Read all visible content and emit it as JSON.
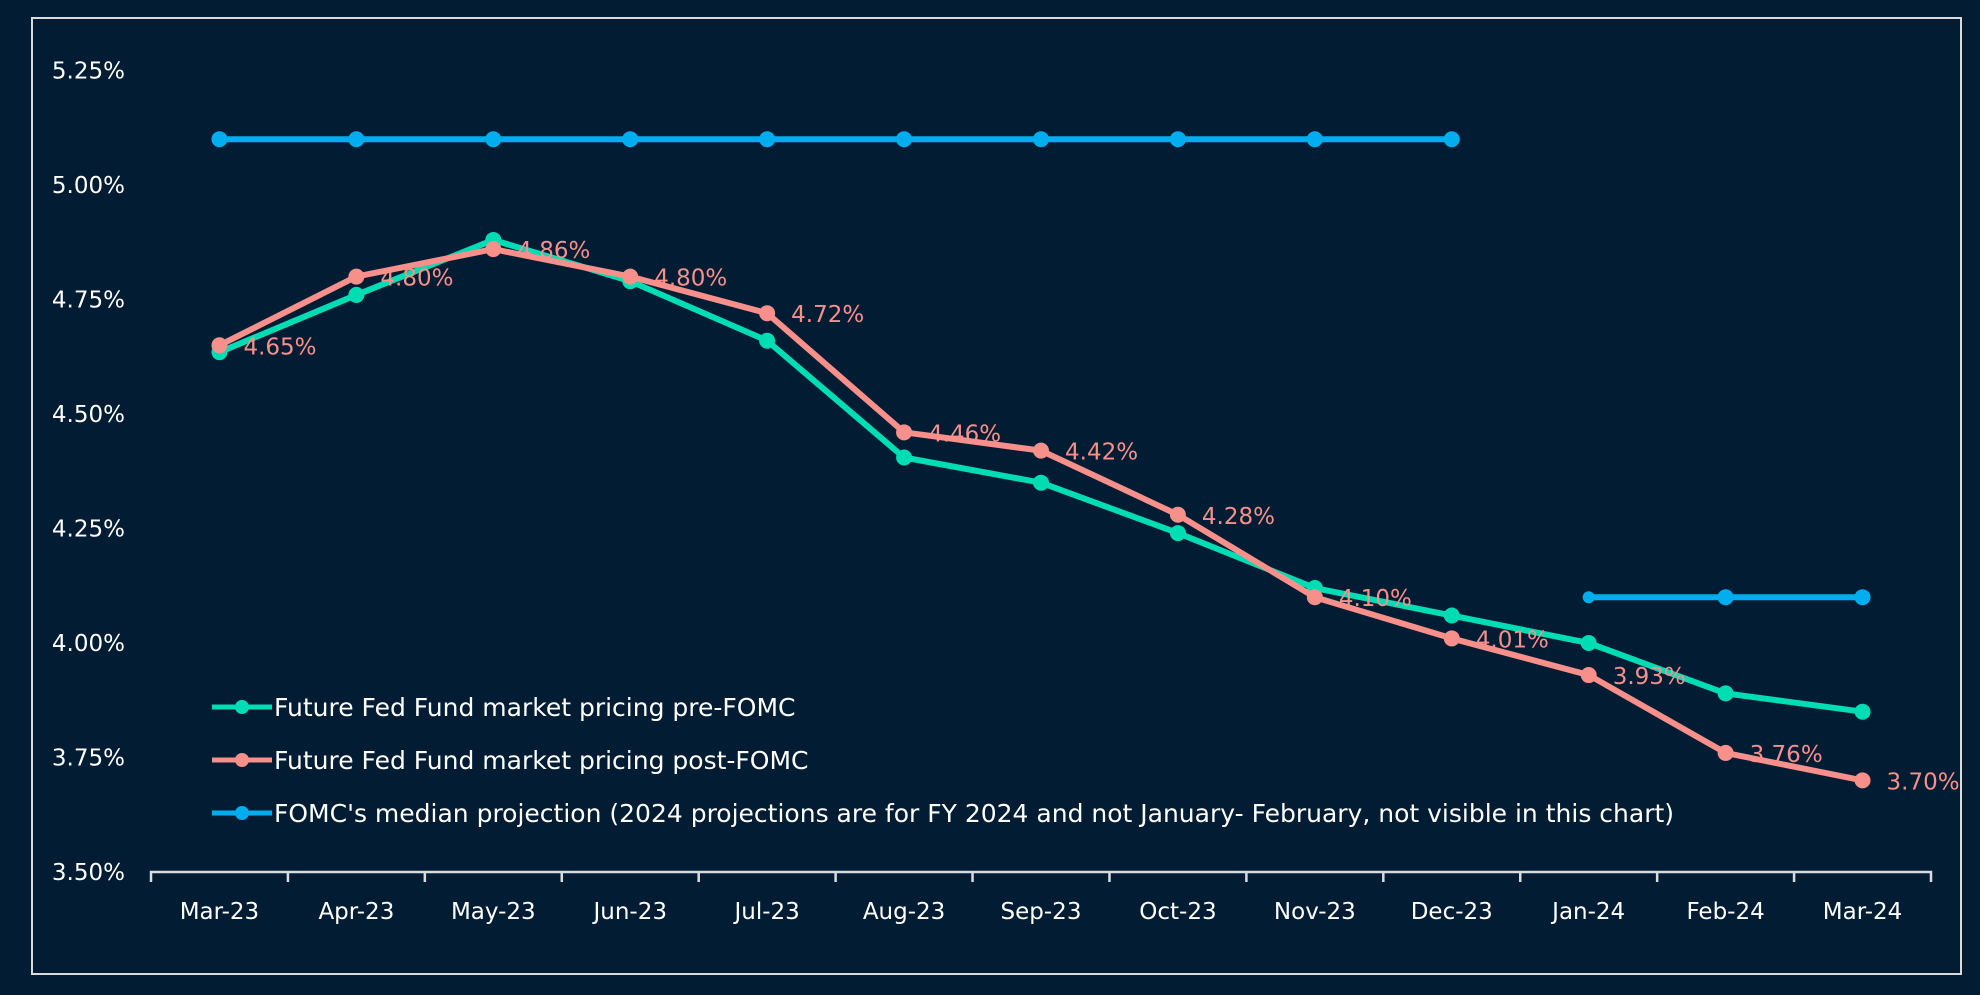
{
  "chart_data": {
    "type": "line",
    "title": "",
    "xlabel": "",
    "ylabel": "",
    "categories": [
      "Mar-23",
      "Apr-23",
      "May-23",
      "Jun-23",
      "Jul-23",
      "Aug-23",
      "Sep-23",
      "Oct-23",
      "Nov-23",
      "Dec-23",
      "Jan-24",
      "Feb-24",
      "Mar-24"
    ],
    "ylim": [
      3.5,
      5.25
    ],
    "yticks": [
      3.5,
      3.75,
      4.0,
      4.25,
      4.5,
      4.75,
      5.0,
      5.25
    ],
    "ytick_labels": [
      "3.50%",
      "3.75%",
      "4.00%",
      "4.25%",
      "4.50%",
      "4.75%",
      "5.00%",
      "5.25%"
    ],
    "grid": false,
    "legend_position": "bottom-left-inside",
    "series": [
      {
        "name": "Future Fed Fund market pricing pre-FOMC",
        "color": "#00ddb5",
        "values": [
          4.635,
          4.76,
          4.88,
          4.79,
          4.66,
          4.405,
          4.35,
          4.24,
          4.12,
          4.06,
          4.0,
          3.89,
          3.85
        ],
        "data_labels": null
      },
      {
        "name": "Future Fed Fund market pricing post-FOMC",
        "color": "#f7908a",
        "values": [
          4.65,
          4.8,
          4.86,
          4.8,
          4.72,
          4.46,
          4.42,
          4.28,
          4.1,
          4.01,
          3.93,
          3.76,
          3.7
        ],
        "data_labels": [
          "4.65%",
          "4.80%",
          "4.86%",
          "4.80%",
          "4.72%",
          "4.46%",
          "4.42%",
          "4.28%",
          "4.10%",
          "4.01%",
          "3.93%",
          "3.76%",
          "3.70%"
        ]
      },
      {
        "name": "FOMC's median projection (2024 projections are for FY 2024 and not January- February, not visible in this chart)",
        "color": "#00aeef",
        "values": [
          5.1,
          5.1,
          5.1,
          5.1,
          5.1,
          5.1,
          5.1,
          5.1,
          5.1,
          5.1,
          4.1,
          4.1,
          4.1
        ],
        "segments": [
          [
            0,
            9
          ],
          [
            10,
            12
          ]
        ],
        "data_labels": null
      }
    ]
  }
}
